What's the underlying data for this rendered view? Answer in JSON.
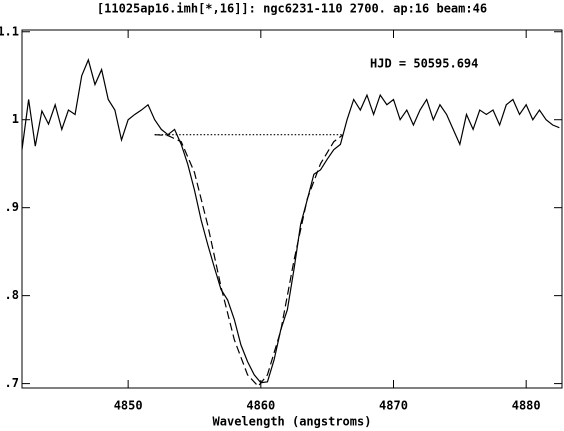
{
  "chart_data": {
    "type": "line",
    "title": "[11025ap16.imh[*,16]]: ngc6231-110 2700. ap:16 beam:46",
    "annotation": "HJD = 50595.694",
    "xlabel": "Wavelength (angstroms)",
    "xlim": [
      4842,
      4882.7
    ],
    "ylim": [
      0.695,
      1.102
    ],
    "xticks": [
      4850,
      4860,
      4870,
      4880
    ],
    "yticks": [
      {
        "value": 0.7,
        "label": ".7"
      },
      {
        "value": 0.8,
        "label": ".8"
      },
      {
        "value": 0.9,
        "label": ".9"
      },
      1,
      1.1
    ],
    "series": [
      {
        "color": "#000000",
        "dash": "solid",
        "x": [
          4842,
          4842.5,
          4843,
          4843.5,
          4844,
          4844.5,
          4845,
          4845.5,
          4846,
          4846.5,
          4847,
          4847.5,
          4848,
          4848.5,
          4849,
          4849.5,
          4850,
          4850.5,
          4851,
          4851.5,
          4852,
          4852.5,
          4853,
          4853.5,
          4854,
          4854.5,
          4855,
          4855.5,
          4856,
          4856.5,
          4857,
          4857.5,
          4858,
          4858.5,
          4859,
          4859.5,
          4860,
          4860.5,
          4861,
          4861.5,
          4862,
          4862.5,
          4863,
          4863.5,
          4864,
          4864.5,
          4865,
          4865.5,
          4866,
          4866.5,
          4867,
          4867.5,
          4868,
          4868.5,
          4869,
          4869.5,
          4870,
          4870.5,
          4871,
          4871.5,
          4872,
          4872.5,
          4873,
          4873.5,
          4874,
          4874.5,
          4875,
          4875.5,
          4876,
          4876.5,
          4877,
          4877.5,
          4878,
          4878.5,
          4879,
          4879.5,
          4880,
          4880.5,
          4881,
          4881.5,
          4882,
          4882.5
        ],
        "values": [
          0.966,
          1.023,
          0.97,
          1.01,
          0.995,
          1.017,
          0.989,
          1.011,
          1.006,
          1.05,
          1.068,
          1.04,
          1.057,
          1.023,
          1.011,
          0.977,
          1.0,
          1.006,
          1.011,
          1.017,
          1.0,
          0.989,
          0.983,
          0.989,
          0.972,
          0.949,
          0.92,
          0.886,
          0.858,
          0.832,
          0.807,
          0.795,
          0.773,
          0.744,
          0.725,
          0.71,
          0.701,
          0.702,
          0.727,
          0.761,
          0.784,
          0.83,
          0.881,
          0.909,
          0.938,
          0.943,
          0.955,
          0.966,
          0.972,
          1.0,
          1.023,
          1.011,
          1.028,
          1.006,
          1.028,
          1.017,
          1.023,
          1.0,
          1.011,
          0.994,
          1.011,
          1.023,
          1.0,
          1.017,
          1.006,
          0.989,
          0.972,
          1.006,
          0.989,
          1.011,
          1.006,
          1.011,
          0.994,
          1.017,
          1.023,
          1.006,
          1.017,
          1.0,
          1.011,
          1.0,
          0.994,
          0.991
        ]
      },
      {
        "color": "#000000",
        "dash": "dashed",
        "x": [
          4852,
          4853,
          4854,
          4855,
          4856,
          4857,
          4858,
          4859,
          4859.8,
          4860.5,
          4861.5,
          4862.5,
          4863.5,
          4864.5,
          4865.5,
          4866.2
        ],
        "values": [
          0.983,
          0.982,
          0.975,
          0.94,
          0.88,
          0.81,
          0.75,
          0.71,
          0.697,
          0.71,
          0.76,
          0.84,
          0.91,
          0.95,
          0.975,
          0.983
        ]
      },
      {
        "color": "#000000",
        "dash": "dotted",
        "x": [
          4852,
          4866.2
        ],
        "values": [
          0.983,
          0.983
        ]
      }
    ]
  }
}
